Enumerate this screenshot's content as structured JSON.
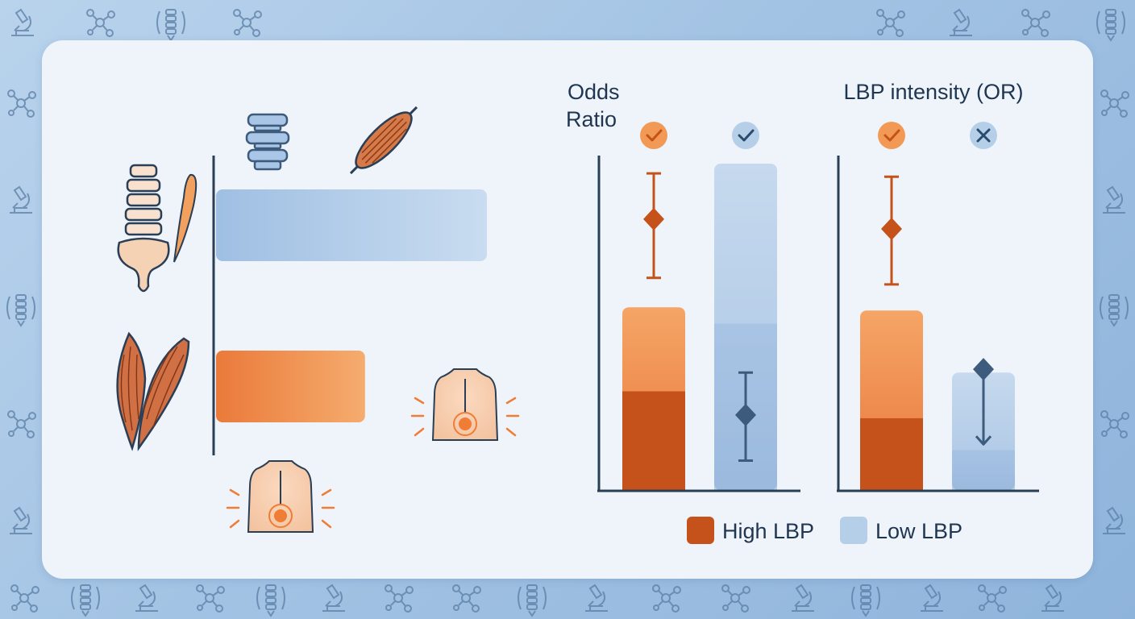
{
  "chart_data": [
    {
      "type": "bar",
      "orientation": "horizontal",
      "categories": [
        "Spine",
        "Muscle"
      ],
      "values": [
        1.0,
        0.55
      ],
      "colors": [
        "#a9c6e6",
        "#ee8a48"
      ],
      "grid": false
    },
    {
      "type": "bar",
      "title": "Odds Ratio",
      "categories": [
        "High LBP",
        "Low LBP"
      ],
      "values": [
        0.56,
        1.0
      ],
      "significance": [
        "check",
        "check"
      ],
      "error_bars": [
        {
          "series": "High LBP",
          "center": 0.83,
          "low": 0.65,
          "high": 0.97
        },
        {
          "series": "Low LBP",
          "center": 0.23,
          "low": 0.09,
          "high": 0.36
        }
      ],
      "ylim": [
        0,
        1.0
      ],
      "grid": false
    },
    {
      "type": "bar",
      "title": "LBP intensity (OR)",
      "categories": [
        "High LBP",
        "Low LBP"
      ],
      "values": [
        0.55,
        0.36
      ],
      "significance": [
        "check",
        "cross"
      ],
      "error_bars": [
        {
          "series": "High LBP",
          "center": 0.8,
          "low": 0.63,
          "high": 0.96
        },
        {
          "series": "Low LBP",
          "center": 0.37,
          "low": 0.14,
          "high": 0.37
        }
      ],
      "ylim": [
        0,
        1.0
      ],
      "grid": false
    }
  ],
  "legend": {
    "placement": "bottom-right",
    "items": [
      {
        "label": "High LBP",
        "color": "#c4521a"
      },
      {
        "label": "Low LBP",
        "color": "#b6cfe8"
      }
    ]
  },
  "icons": [
    "spine-icon",
    "muscle-icon",
    "back-pain-icon",
    "molecule-icon",
    "microscope-icon",
    "check-icon",
    "cross-icon"
  ]
}
